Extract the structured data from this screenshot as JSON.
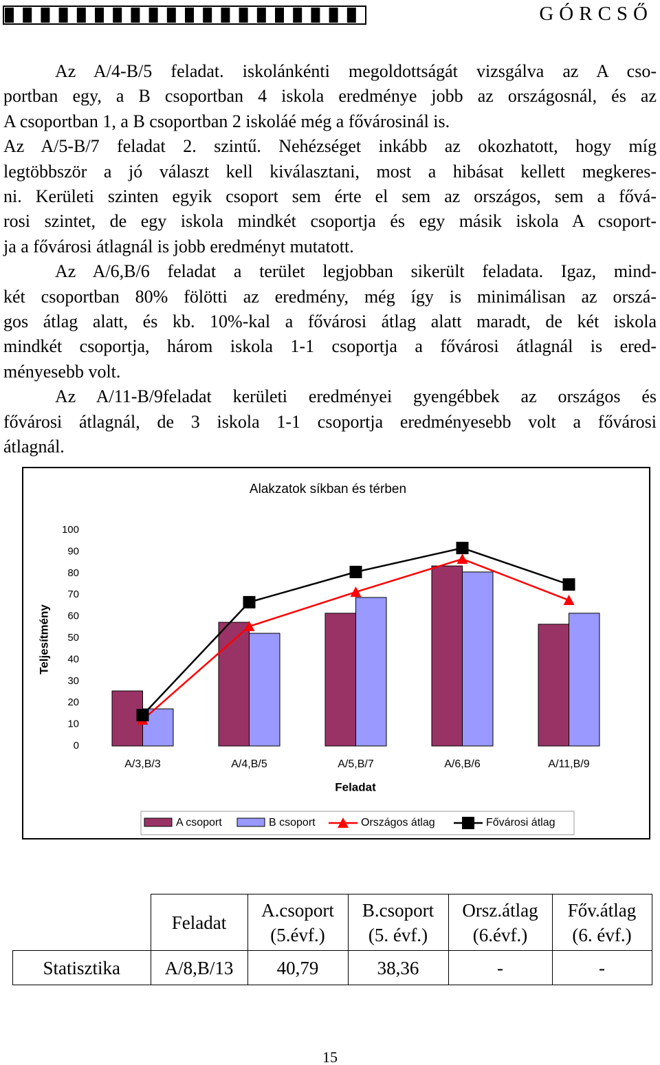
{
  "header": {
    "title": "GÓRCSŐ"
  },
  "paragraphs": [
    {
      "indent": true,
      "lines": [
        "Az A/4-B/5 feladat. iskolánkénti megoldottságát vizsgálva az A cso-",
        "portban egy, a B csoportban 4 iskola eredménye jobb az országosnál, és az",
        "A csoportban 1, a B csoportban 2 iskoláé még a fővárosinál is."
      ]
    },
    {
      "indent": false,
      "lines": [
        "Az A/5-B/7 feladat 2. szintű. Nehézséget inkább az okozhatott, hogy míg",
        "legtöbbször a jó választ kell kiválasztani, most a hibásat kellett megkeres-",
        "ni. Kerületi szinten egyik csoport sem érte el sem az országos, sem a fővá-",
        "rosi szintet, de egy iskola mindkét csoportja és egy másik iskola A csoport-",
        "ja a fővárosi átlagnál is jobb eredményt mutatott."
      ]
    },
    {
      "indent": true,
      "lines": [
        "Az A/6,B/6 feladat a terület legjobban sikerült feladata. Igaz, mind-",
        "két csoportban 80% fölötti az eredmény, még így is minimálisan az orszá-",
        "gos átlag alatt, és kb. 10%-kal a fővárosi átlag alatt maradt, de két iskola",
        "mindkét csoportja, három iskola 1-1 csoportja a fővárosi átlagnál is ered-",
        "ményesebb volt."
      ]
    },
    {
      "indent": true,
      "lines": [
        "Az A/11-B/9feladat kerületi eredményei gyengébbek az országos és",
        "fővárosi átlagnál, de 3 iskola 1-1 csoportja eredményesebb volt a fővárosi",
        "átlagnál."
      ]
    }
  ],
  "chart_data": {
    "type": "bar-line",
    "title": "Alakzatok síkban és térben",
    "x_label": "Feladat",
    "y_label": "Teljesítmény",
    "categories": [
      "A/3,B/3",
      "A/4,B/5",
      "A/5,B/7",
      "A/6,B/6",
      "A/11,B/9"
    ],
    "series": [
      {
        "name": "A csoport",
        "kind": "bar",
        "color": "#993366",
        "values": [
          25.5,
          57.3,
          61.5,
          83.4,
          56.4
        ]
      },
      {
        "name": "B csoport",
        "kind": "bar",
        "color": "#9999ff",
        "values": [
          17.2,
          52.2,
          68.8,
          80.6,
          61.5
        ]
      },
      {
        "name": "Országos átlag",
        "kind": "line",
        "marker": "triangle",
        "color": "#ff0000",
        "values": [
          12.1,
          55.4,
          71.3,
          86.6,
          67.5
        ]
      },
      {
        "name": "Fővárosi átlag",
        "kind": "line",
        "marker": "square",
        "color": "#000000",
        "values": [
          14.3,
          66.6,
          80.6,
          91.7,
          74.8
        ]
      }
    ],
    "ylim": [
      0,
      100
    ],
    "yticks": [
      0,
      10,
      20,
      30,
      40,
      50,
      60,
      70,
      80,
      90,
      100
    ],
    "legend": "bottom"
  },
  "table": {
    "header": [
      "Feladat",
      [
        "A.csoport",
        "(5.évf.)"
      ],
      [
        "B.csoport",
        "(5. évf.)"
      ],
      [
        "Orsz.átlag",
        "(6.évf.)"
      ],
      [
        "Főv.átlag",
        "(6. évf.)"
      ]
    ],
    "rows": [
      [
        "Statisztika",
        "A/8,B/13",
        "40,79",
        "38,36",
        "-",
        "-"
      ]
    ]
  },
  "page_number": "15"
}
